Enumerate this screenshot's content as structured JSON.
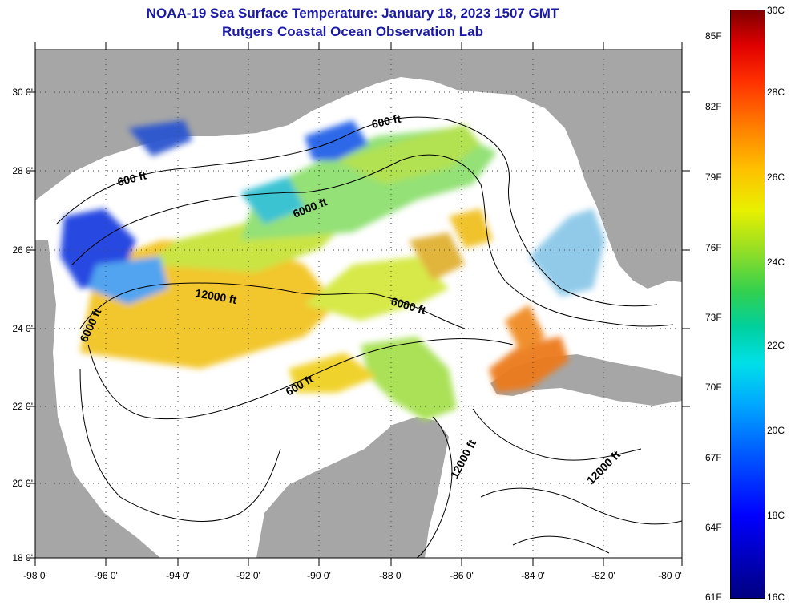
{
  "title_line1": "NOAA-19 Sea Surface Temperature:  January 18, 2023 1507 GMT",
  "title_line2": "Rutgers Coastal Ocean Observation Lab",
  "lat_ticks": [
    "30 0'",
    "28 0'",
    "26 0'",
    "24 0'",
    "22 0'",
    "20 0'",
    "18 0'"
  ],
  "lon_ticks": [
    "-98 0'",
    "-96 0'",
    "-94 0'",
    "-92 0'",
    "-90 0'",
    "-88 0'",
    "-86 0'",
    "-84 0'",
    "-82 0'",
    "-80 0'"
  ],
  "contour_labels": [
    "600 ft",
    "600 ft",
    "6000 ft",
    "12000 ft",
    "6000 ft",
    "6000 ft",
    "600 ft",
    "12000 ft",
    "12000 ft"
  ],
  "colorbar_f": [
    "85F",
    "82F",
    "79F",
    "76F",
    "73F",
    "70F",
    "67F",
    "64F",
    "61F"
  ],
  "colorbar_c": [
    "30C",
    "28C",
    "26C",
    "24C",
    "22C",
    "20C",
    "18C",
    "16C"
  ],
  "colors": {
    "land": "#a6a6a6",
    "no_data": "#ffffff",
    "title": "#1a1aa6"
  }
}
